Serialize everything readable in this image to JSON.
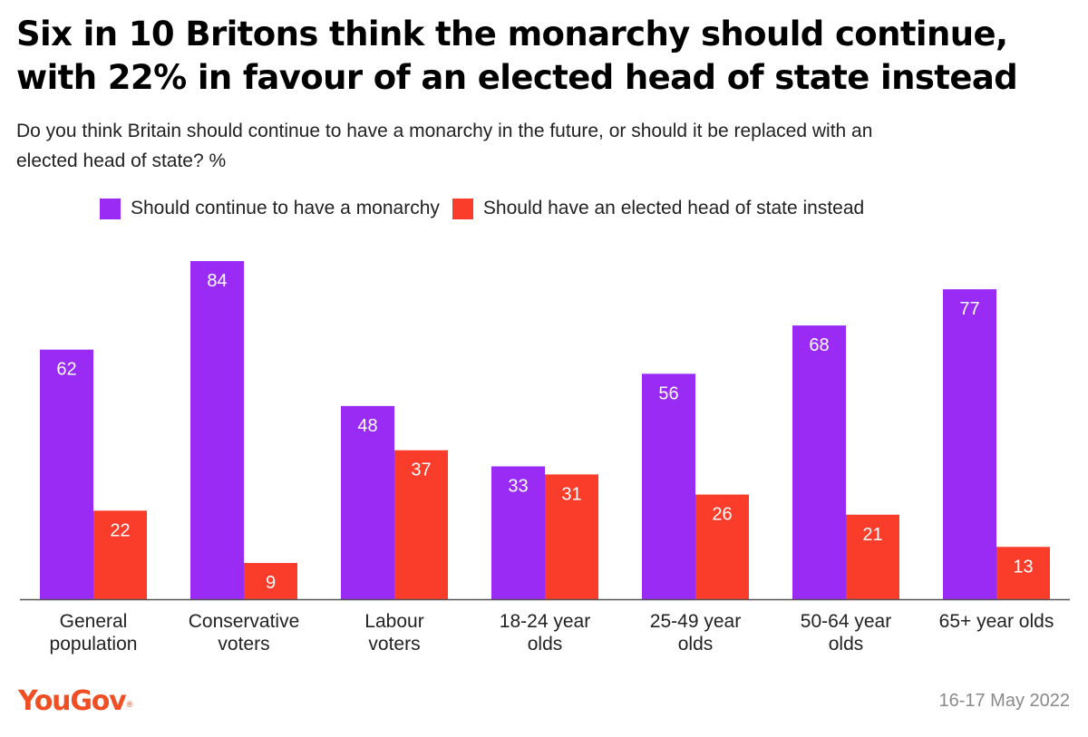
{
  "title_lines": [
    "Six in 10 Britons think the monarchy should continue,",
    "with 22% in favour of an elected head of state instead"
  ],
  "subtitle_lines": [
    "Do you think Britain should continue to have a monarchy in the future, or should it be replaced with an",
    "elected head of state? %"
  ],
  "colors": {
    "monarchy": "#9a2bf5",
    "elected": "#fa3d2b",
    "brand": "#f04e23",
    "axis": "#555555",
    "date": "#8a8a8a"
  },
  "chart_data": {
    "type": "bar",
    "title": "Six in 10 Britons think the monarchy should continue, with 22% in favour of an elected head of state instead",
    "categories": [
      [
        "General",
        "population"
      ],
      [
        "Conservative",
        "voters"
      ],
      [
        "Labour",
        "voters"
      ],
      [
        "18-24 year",
        "olds"
      ],
      [
        "25-49 year",
        "olds"
      ],
      [
        "50-64 year",
        "olds"
      ],
      [
        "65+ year olds"
      ]
    ],
    "series": [
      {
        "name": "Should continue to have a monarchy",
        "values": [
          62,
          84,
          48,
          33,
          56,
          68,
          77
        ]
      },
      {
        "name": "Should have an elected head of state instead",
        "values": [
          22,
          9,
          37,
          31,
          26,
          21,
          13
        ]
      }
    ],
    "ylim": [
      0,
      84
    ],
    "xlabel": "",
    "ylabel": "%",
    "legend_position": "top",
    "grid": false
  },
  "footer": {
    "logo_text": "YouGov",
    "logo_mark": "®",
    "date": "16-17 May 2022"
  }
}
